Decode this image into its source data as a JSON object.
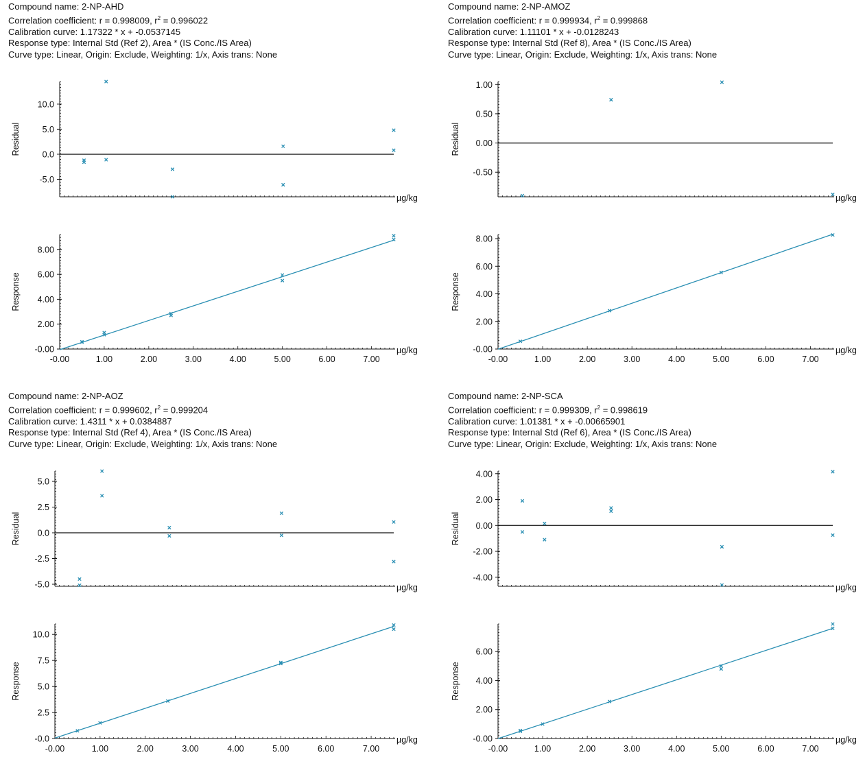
{
  "labels": {
    "residual": "Residual",
    "response": "Response",
    "unit": "µg/kg"
  },
  "colors": {
    "point": "#2a8fb3",
    "line": "#2a8fb3",
    "axis": "#111111"
  },
  "chart_data": [
    {
      "type": "scatter",
      "compound_text": "Compound name: 2-NP-AHD",
      "correlation_prefix": "Correlation coefficient: r = 0.998009, r",
      "correlation_sup": "2",
      "correlation_suffix": " = 0.996022",
      "calibration_text": "Calibration curve: 1.17322 * x + -0.0537145",
      "response_type_text": "Response type: Internal Std (Ref 2), Area * (IS Conc./IS Area)",
      "curve_type_text": "Curve type: Linear, Origin: Exclude, Weighting: 1/x, Axis trans: None",
      "slope": 1.17322,
      "intercept": -0.0537145,
      "residual": {
        "ylabel": "Residual",
        "xlabel": "µg/kg",
        "xlim": [
          -0.05,
          7.5
        ],
        "ylim": [
          -8.5,
          14.5
        ],
        "yticks": [
          10,
          5,
          0,
          -5
        ],
        "ytick_labels": [
          "10.0",
          "5.0",
          "0.0",
          "-5.0"
        ],
        "points": [
          [
            0.5,
            -1.2
          ],
          [
            0.5,
            -1.6
          ],
          [
            1.0,
            14.5
          ],
          [
            1.0,
            -1.1
          ],
          [
            2.5,
            -3.0
          ],
          [
            2.5,
            -8.5
          ],
          [
            5.0,
            1.6
          ],
          [
            5.0,
            -6.1
          ],
          [
            7.5,
            4.8
          ],
          [
            7.5,
            0.8
          ]
        ]
      },
      "response": {
        "ylabel": "Response",
        "xlabel": "µg/kg",
        "xlim": [
          0,
          7.5
        ],
        "ylim": [
          0,
          9.2
        ],
        "yticks": [
          8,
          6,
          4,
          2,
          0
        ],
        "ytick_labels": [
          "8.00",
          "6.00",
          "4.00",
          "2.00",
          "-0.00"
        ],
        "xticks": [
          0,
          1,
          2,
          3,
          4,
          5,
          6,
          7
        ],
        "xtick_labels": [
          "-0.00",
          "1.00",
          "2.00",
          "3.00",
          "4.00",
          "5.00",
          "6.00",
          "7.00"
        ],
        "points": [
          [
            0.5,
            0.55
          ],
          [
            0.5,
            0.58
          ],
          [
            1.0,
            1.15
          ],
          [
            1.0,
            1.32
          ],
          [
            2.5,
            2.85
          ],
          [
            2.5,
            2.7
          ],
          [
            5.0,
            5.95
          ],
          [
            5.0,
            5.5
          ],
          [
            7.5,
            9.1
          ],
          [
            7.5,
            8.8
          ]
        ]
      }
    },
    {
      "type": "scatter",
      "compound_text": "Compound name: 2-NP-AMOZ",
      "correlation_prefix": "Correlation coefficient: r = 0.999934, r",
      "correlation_sup": "2",
      "correlation_suffix": " = 0.999868",
      "calibration_text": "Calibration curve: 1.11101 * x + -0.0128243",
      "response_type_text": "Response type: Internal Std (Ref 8), Area * (IS Conc./IS Area)",
      "curve_type_text": "Curve type: Linear, Origin: Exclude, Weighting: 1/x, Axis trans: None",
      "slope": 1.11101,
      "intercept": -0.0128243,
      "residual": {
        "ylabel": "Residual",
        "xlabel": "µg/kg",
        "xlim": [
          -0.05,
          7.5
        ],
        "ylim": [
          -0.92,
          1.05
        ],
        "yticks": [
          1,
          0.5,
          0,
          -0.5
        ],
        "ytick_labels": [
          "1.00",
          "0.50",
          "0.00",
          "-0.50"
        ],
        "points": [
          [
            0.5,
            -0.9
          ],
          [
            2.5,
            0.74
          ],
          [
            5.0,
            1.04
          ],
          [
            7.5,
            -0.88
          ]
        ]
      },
      "response": {
        "ylabel": "Response",
        "xlabel": "µg/kg",
        "xlim": [
          0,
          7.5
        ],
        "ylim": [
          0,
          8.3
        ],
        "yticks": [
          8,
          6,
          4,
          2,
          0
        ],
        "ytick_labels": [
          "8.00",
          "6.00",
          "4.00",
          "2.00",
          "-0.00"
        ],
        "xticks": [
          0,
          1,
          2,
          3,
          4,
          5,
          6,
          7
        ],
        "xtick_labels": [
          "-0.00",
          "1.00",
          "2.00",
          "3.00",
          "4.00",
          "5.00",
          "6.00",
          "7.00"
        ],
        "points": [
          [
            0.5,
            0.56
          ],
          [
            2.5,
            2.78
          ],
          [
            5.0,
            5.55
          ],
          [
            7.5,
            8.27
          ]
        ]
      }
    },
    {
      "type": "scatter",
      "compound_text": "Compound name: 2-NP-AOZ",
      "correlation_prefix": "Correlation coefficient: r = 0.999602, r",
      "correlation_sup": "2",
      "correlation_suffix": " = 0.999204",
      "calibration_text": "Calibration curve: 1.4311 * x + 0.0384887",
      "response_type_text": "Response type: Internal Std (Ref 4), Area * (IS Conc./IS Area)",
      "curve_type_text": "Curve type: Linear, Origin: Exclude, Weighting: 1/x, Axis trans: None",
      "slope": 1.4311,
      "intercept": 0.0384887,
      "residual": {
        "ylabel": "Residual",
        "xlabel": "µg/kg",
        "xlim": [
          -0.05,
          7.5
        ],
        "ylim": [
          -5.2,
          6.0
        ],
        "yticks": [
          5,
          2.5,
          0,
          -2.5,
          -5
        ],
        "ytick_labels": [
          "5.0",
          "2.5",
          "0.0",
          "-2.5",
          "-5.0"
        ],
        "points": [
          [
            0.5,
            -4.5
          ],
          [
            0.5,
            -5.1
          ],
          [
            1.0,
            6.0
          ],
          [
            1.0,
            3.6
          ],
          [
            2.5,
            0.5
          ],
          [
            2.5,
            -0.3
          ],
          [
            5.0,
            1.9
          ],
          [
            5.0,
            -0.25
          ],
          [
            7.5,
            1.05
          ],
          [
            7.5,
            -2.8
          ]
        ]
      },
      "response": {
        "ylabel": "Response",
        "xlabel": "µg/kg",
        "xlim": [
          0,
          7.5
        ],
        "ylim": [
          0,
          11
        ],
        "yticks": [
          10,
          7.5,
          5,
          2.5,
          0
        ],
        "ytick_labels": [
          "10.0",
          "7.5",
          "5.0",
          "2.5",
          "-0.0"
        ],
        "xticks": [
          0,
          1,
          2,
          3,
          4,
          5,
          6,
          7
        ],
        "xtick_labels": [
          "-0.00",
          "1.00",
          "2.00",
          "3.00",
          "4.00",
          "5.00",
          "6.00",
          "7.00"
        ],
        "points": [
          [
            0.5,
            0.74
          ],
          [
            1.0,
            1.5
          ],
          [
            2.5,
            3.6
          ],
          [
            5.0,
            7.3
          ],
          [
            5.0,
            7.2
          ],
          [
            7.5,
            10.9
          ],
          [
            7.5,
            10.5
          ]
        ]
      }
    },
    {
      "type": "scatter",
      "compound_text": "Compound name: 2-NP-SCA",
      "correlation_prefix": "Correlation coefficient: r = 0.999309, r",
      "correlation_sup": "2",
      "correlation_suffix": " = 0.998619",
      "calibration_text": "Calibration curve: 1.01381 * x + -0.00665901",
      "response_type_text": "Response type: Internal Std (Ref 6), Area * (IS Conc./IS Area)",
      "curve_type_text": "Curve type: Linear, Origin: Exclude, Weighting: 1/x, Axis trans: None",
      "slope": 1.01381,
      "intercept": -0.00665901,
      "residual": {
        "ylabel": "Residual",
        "xlabel": "µg/kg",
        "xlim": [
          -0.05,
          7.5
        ],
        "ylim": [
          -4.7,
          4.2
        ],
        "yticks": [
          4,
          2,
          0,
          -2,
          -4
        ],
        "ytick_labels": [
          "4.00",
          "2.00",
          "0.00",
          "-2.00",
          "-4.00"
        ],
        "points": [
          [
            0.5,
            1.9
          ],
          [
            0.5,
            -0.5
          ],
          [
            1.0,
            0.15
          ],
          [
            1.0,
            -1.1
          ],
          [
            2.5,
            1.35
          ],
          [
            2.5,
            1.1
          ],
          [
            5.0,
            -1.65
          ],
          [
            5.0,
            -4.6
          ],
          [
            7.5,
            4.15
          ],
          [
            7.5,
            -0.75
          ]
        ]
      },
      "response": {
        "ylabel": "Response",
        "xlabel": "µg/kg",
        "xlim": [
          0,
          7.5
        ],
        "ylim": [
          0,
          7.9
        ],
        "yticks": [
          6,
          4,
          2,
          0
        ],
        "ytick_labels": [
          "6.00",
          "4.00",
          "2.00",
          "-0.00"
        ],
        "xticks": [
          0,
          1,
          2,
          3,
          4,
          5,
          6,
          7
        ],
        "xtick_labels": [
          "-0.00",
          "1.00",
          "2.00",
          "3.00",
          "4.00",
          "5.00",
          "6.00",
          "7.00"
        ],
        "points": [
          [
            0.5,
            0.5
          ],
          [
            0.5,
            0.55
          ],
          [
            1.0,
            1.0
          ],
          [
            2.5,
            2.55
          ],
          [
            5.0,
            5.0
          ],
          [
            5.0,
            4.8
          ],
          [
            7.5,
            7.9
          ],
          [
            7.5,
            7.6
          ]
        ]
      }
    }
  ]
}
